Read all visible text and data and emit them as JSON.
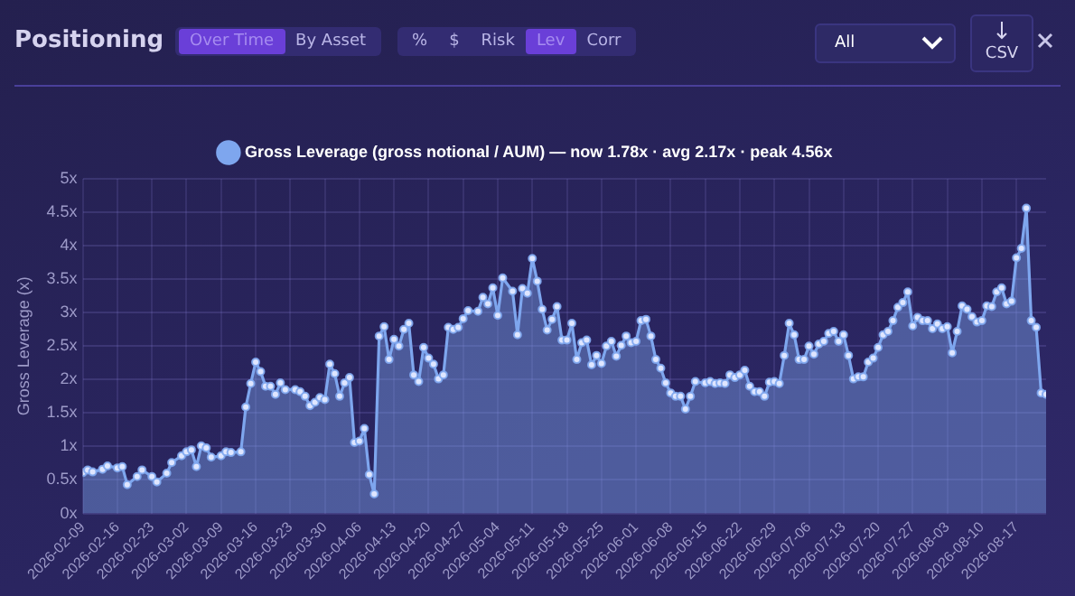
{
  "chart_data": {
    "type": "area",
    "title": "Positioning",
    "ylabel": "Gross Leverage (x)",
    "annotations": [
      "Over Time",
      "By Asset",
      "%",
      "$",
      "Risk",
      "Lev",
      "Corr",
      "All",
      "CSV"
    ],
    "xlim": [
      "2026-02-09",
      "2026-08-23"
    ],
    "xticks": [
      "2026-02-09",
      "2026-02-16",
      "2026-02-23",
      "2026-03-02",
      "2026-03-09",
      "2026-03-16",
      "2026-03-23",
      "2026-03-30",
      "2026-04-06",
      "2026-04-13",
      "2026-04-20",
      "2026-04-27",
      "2026-05-04",
      "2026-05-11",
      "2026-05-18",
      "2026-05-25",
      "2026-06-01",
      "2026-06-08",
      "2026-06-15",
      "2026-06-22",
      "2026-06-29",
      "2026-07-06",
      "2026-07-13",
      "2026-07-20",
      "2026-07-27",
      "2026-08-03",
      "2026-08-10",
      "2026-08-17"
    ],
    "ylim": [
      0,
      5
    ],
    "yticks": [
      {
        "value": 0,
        "label": "0x"
      },
      {
        "value": 0.5,
        "label": "0.5x"
      },
      {
        "value": 1,
        "label": "1x"
      },
      {
        "value": 1.5,
        "label": "1.5x"
      },
      {
        "value": 2,
        "label": "2x"
      },
      {
        "value": 2.5,
        "label": "2.5x"
      },
      {
        "value": 3,
        "label": "3x"
      },
      {
        "value": 3.5,
        "label": "3.5x"
      },
      {
        "value": 4,
        "label": "4x"
      },
      {
        "value": 4.5,
        "label": "4.5x"
      },
      {
        "value": 5,
        "label": "5x"
      }
    ],
    "grid": true,
    "legend": "top",
    "marker": "circle",
    "line_style": "solid",
    "x": [
      "2026-02-09",
      "2026-02-10",
      "2026-02-11",
      "2026-02-13",
      "2026-02-14",
      "2026-02-16",
      "2026-02-17",
      "2026-02-18",
      "2026-02-20",
      "2026-02-21",
      "2026-02-23",
      "2026-02-24",
      "2026-02-26",
      "2026-02-27",
      "2026-03-01",
      "2026-03-02",
      "2026-03-03",
      "2026-03-04",
      "2026-03-05",
      "2026-03-06",
      "2026-03-07",
      "2026-03-09",
      "2026-03-10",
      "2026-03-11",
      "2026-03-13",
      "2026-03-14",
      "2026-03-15",
      "2026-03-16",
      "2026-03-17",
      "2026-03-18",
      "2026-03-19",
      "2026-03-20",
      "2026-03-21",
      "2026-03-22",
      "2026-03-24",
      "2026-03-25",
      "2026-03-26",
      "2026-03-27",
      "2026-03-28",
      "2026-03-29",
      "2026-03-30",
      "2026-03-31",
      "2026-04-01",
      "2026-04-02",
      "2026-04-03",
      "2026-04-04",
      "2026-04-05",
      "2026-04-06",
      "2026-04-07",
      "2026-04-08",
      "2026-04-09",
      "2026-04-10",
      "2026-04-11",
      "2026-04-12",
      "2026-04-13",
      "2026-04-14",
      "2026-04-15",
      "2026-04-16",
      "2026-04-17",
      "2026-04-18",
      "2026-04-19",
      "2026-04-20",
      "2026-04-21",
      "2026-04-22",
      "2026-04-23",
      "2026-04-24",
      "2026-04-25",
      "2026-04-26",
      "2026-04-27",
      "2026-04-28",
      "2026-04-30",
      "2026-05-01",
      "2026-05-02",
      "2026-05-03",
      "2026-05-04",
      "2026-05-05",
      "2026-05-07",
      "2026-05-08",
      "2026-05-09",
      "2026-05-10",
      "2026-05-11",
      "2026-05-12",
      "2026-05-13",
      "2026-05-14",
      "2026-05-15",
      "2026-05-16",
      "2026-05-17",
      "2026-05-18",
      "2026-05-19",
      "2026-05-20",
      "2026-05-21",
      "2026-05-22",
      "2026-05-23",
      "2026-05-24",
      "2026-05-25",
      "2026-05-26",
      "2026-05-27",
      "2026-05-28",
      "2026-05-29",
      "2026-05-30",
      "2026-05-31",
      "2026-06-01",
      "2026-06-02",
      "2026-06-03",
      "2026-06-04",
      "2026-06-05",
      "2026-06-06",
      "2026-06-07",
      "2026-06-08",
      "2026-06-09",
      "2026-06-10",
      "2026-06-11",
      "2026-06-12",
      "2026-06-13",
      "2026-06-15",
      "2026-06-16",
      "2026-06-17",
      "2026-06-18",
      "2026-06-19",
      "2026-06-20",
      "2026-06-21",
      "2026-06-22",
      "2026-06-23",
      "2026-06-24",
      "2026-06-25",
      "2026-06-26",
      "2026-06-27",
      "2026-06-28",
      "2026-06-29",
      "2026-06-30",
      "2026-07-01",
      "2026-07-02",
      "2026-07-03",
      "2026-07-04",
      "2026-07-05",
      "2026-07-06",
      "2026-07-07",
      "2026-07-08",
      "2026-07-09",
      "2026-07-10",
      "2026-07-11",
      "2026-07-12",
      "2026-07-13",
      "2026-07-14",
      "2026-07-15",
      "2026-07-16",
      "2026-07-17",
      "2026-07-18",
      "2026-07-19",
      "2026-07-20",
      "2026-07-21",
      "2026-07-22",
      "2026-07-23",
      "2026-07-24",
      "2026-07-25",
      "2026-07-26",
      "2026-07-27",
      "2026-07-28",
      "2026-07-29",
      "2026-07-30",
      "2026-07-31",
      "2026-08-01",
      "2026-08-02",
      "2026-08-03",
      "2026-08-04",
      "2026-08-05",
      "2026-08-06",
      "2026-08-07",
      "2026-08-08",
      "2026-08-09",
      "2026-08-10",
      "2026-08-11",
      "2026-08-12",
      "2026-08-13",
      "2026-08-14",
      "2026-08-15",
      "2026-08-16",
      "2026-08-17",
      "2026-08-18",
      "2026-08-19",
      "2026-08-20",
      "2026-08-21",
      "2026-08-22",
      "2026-08-23"
    ],
    "series": [
      {
        "name": "Gross Leverage (gross notional / AUM) — now 1.78x · avg 2.17x · peak 4.56x",
        "color": "#7ea6ee",
        "values": [
          0.61,
          0.65,
          0.62,
          0.66,
          0.71,
          0.68,
          0.7,
          0.43,
          0.55,
          0.65,
          0.55,
          0.47,
          0.6,
          0.76,
          0.86,
          0.92,
          0.95,
          0.7,
          1.01,
          0.98,
          0.84,
          0.86,
          0.92,
          0.91,
          0.92,
          1.59,
          1.94,
          2.26,
          2.12,
          1.9,
          1.9,
          1.78,
          1.95,
          1.85,
          1.85,
          1.82,
          1.75,
          1.61,
          1.66,
          1.73,
          1.7,
          2.23,
          2.09,
          1.75,
          1.95,
          2.03,
          1.06,
          1.08,
          1.27,
          0.58,
          0.29,
          2.65,
          2.79,
          2.3,
          2.6,
          2.5,
          2.75,
          2.84,
          2.07,
          1.97,
          2.48,
          2.32,
          2.23,
          2.01,
          2.07,
          2.78,
          2.75,
          2.78,
          2.91,
          3.03,
          3.02,
          3.23,
          3.13,
          3.37,
          2.96,
          3.52,
          3.32,
          2.67,
          3.36,
          3.29,
          3.81,
          3.47,
          3.05,
          2.74,
          2.9,
          3.09,
          2.59,
          2.59,
          2.84,
          2.3,
          2.55,
          2.59,
          2.22,
          2.36,
          2.24,
          2.5,
          2.57,
          2.35,
          2.51,
          2.65,
          2.55,
          2.57,
          2.88,
          2.9,
          2.65,
          2.3,
          2.17,
          1.95,
          1.8,
          1.75,
          1.75,
          1.56,
          1.75,
          1.97,
          1.95,
          1.97,
          1.94,
          1.95,
          1.94,
          2.07,
          2.03,
          2.07,
          2.14,
          1.9,
          1.82,
          1.82,
          1.75,
          1.96,
          1.97,
          1.94,
          2.36,
          2.84,
          2.67,
          2.3,
          2.3,
          2.5,
          2.38,
          2.53,
          2.57,
          2.69,
          2.72,
          2.57,
          2.67,
          2.36,
          2.01,
          2.04,
          2.04,
          2.26,
          2.32,
          2.48,
          2.67,
          2.72,
          2.88,
          3.08,
          3.15,
          3.31,
          2.8,
          2.93,
          2.88,
          2.88,
          2.76,
          2.83,
          2.76,
          2.79,
          2.4,
          2.72,
          3.1,
          3.05,
          2.94,
          2.86,
          2.88,
          3.1,
          3.09,
          3.31,
          3.37,
          3.13,
          3.17,
          3.82,
          3.96,
          4.56,
          2.88,
          2.78,
          1.8,
          1.78
        ]
      }
    ]
  }
}
